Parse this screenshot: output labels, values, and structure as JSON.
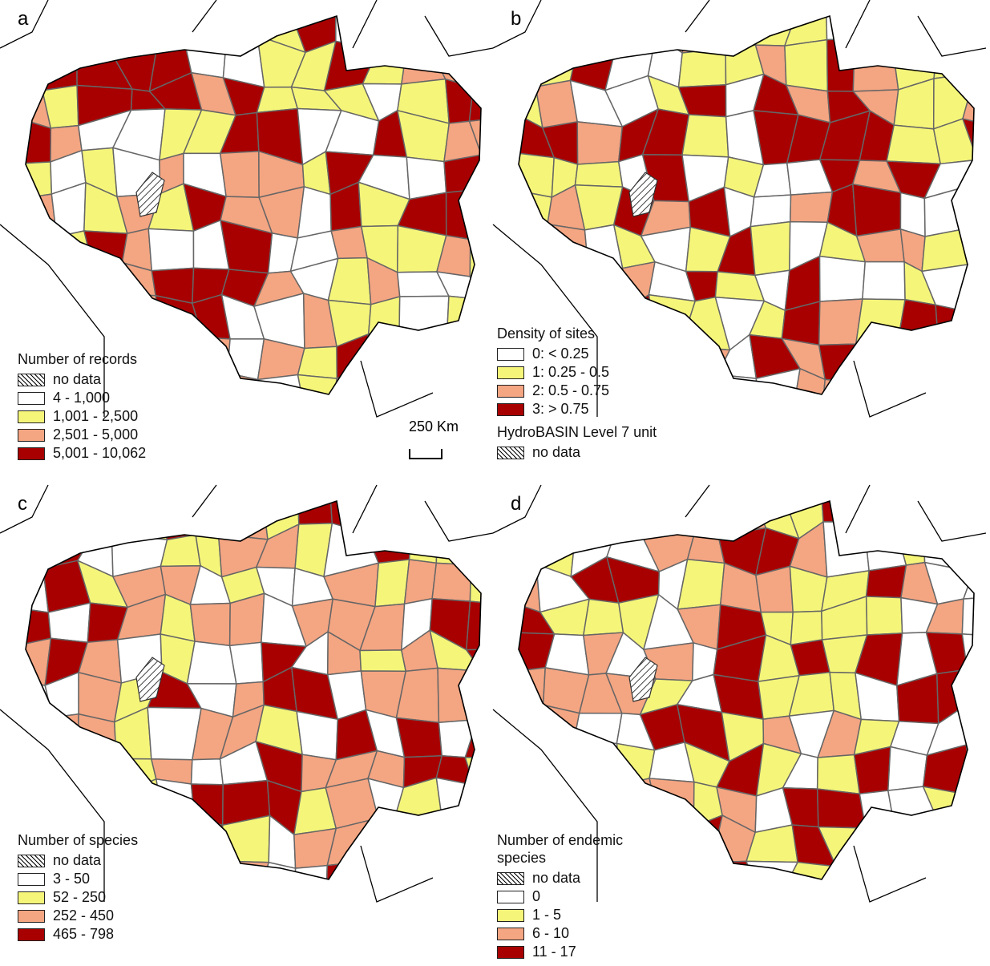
{
  "panels": [
    {
      "letter": "a",
      "legend": {
        "title": "Number of records",
        "items": [
          {
            "label": "no data"
          },
          {
            "label": "4 - 1,000",
            "color": "#ffffff"
          },
          {
            "label": "1,001 - 2,500",
            "color": "#f5f57a"
          },
          {
            "label": "2,501 - 5,000",
            "color": "#f4a582"
          },
          {
            "label": "5,001 - 10,062",
            "color": "#a80000"
          }
        ]
      }
    },
    {
      "letter": "b",
      "legend": {
        "title": "Density of sites",
        "items": [
          {
            "label": "0: < 0.25",
            "color": "#ffffff"
          },
          {
            "label": "1: 0.25 - 0.5",
            "color": "#f5f57a"
          },
          {
            "label": "2: 0.5 - 0.75",
            "color": "#f4a582"
          },
          {
            "label": "3: > 0.75",
            "color": "#a80000"
          }
        ]
      },
      "extra_legend": {
        "title": "HydroBASIN Level 7 unit",
        "items": [
          {
            "label": "no data"
          }
        ]
      }
    },
    {
      "letter": "c",
      "legend": {
        "title": "Number of species",
        "items": [
          {
            "label": "no data"
          },
          {
            "label": "3 - 50",
            "color": "#ffffff"
          },
          {
            "label": "52 - 250",
            "color": "#f5f57a"
          },
          {
            "label": "252 - 450",
            "color": "#f4a582"
          },
          {
            "label": "465 - 798",
            "color": "#a80000"
          }
        ]
      }
    },
    {
      "letter": "d",
      "legend": {
        "title": "Number of endemic species",
        "items": [
          {
            "label": "no data"
          },
          {
            "label": "0",
            "color": "#ffffff"
          },
          {
            "label": "1 - 5",
            "color": "#f5f57a"
          },
          {
            "label": "6 - 10",
            "color": "#f4a582"
          },
          {
            "label": "11 - 17",
            "color": "#a80000"
          }
        ]
      }
    }
  ],
  "scale_bar": "250  Km"
}
